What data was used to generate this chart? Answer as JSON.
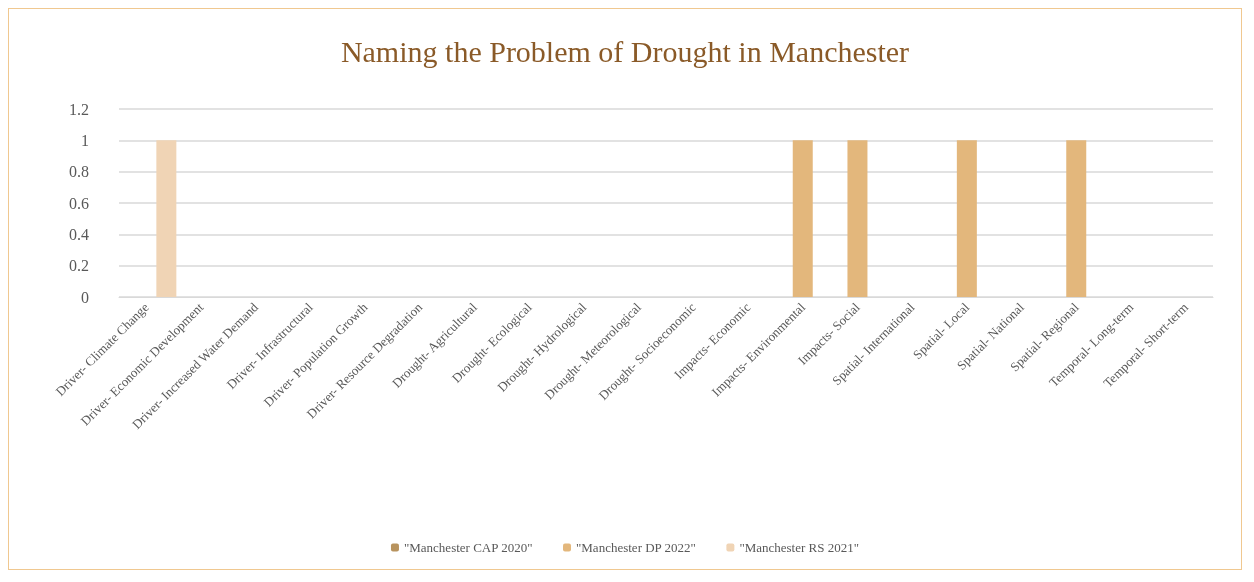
{
  "chart_data": {
    "type": "bar",
    "title": "Naming the Problem of Drought in Manchester",
    "categories": [
      "Driver- Climate Change",
      "Driver- Economic Development",
      "Driver- Increased Water Demand",
      "Driver- Infrastructural",
      "Driver- Population Growth",
      "Driver- Resource Degradation",
      "Drought- Agricultural",
      "Drought- Ecological",
      "Drought- Hydrological",
      "Drought- Meteorological",
      "Drought- Socioeconomic",
      "Impacts- Economic",
      "Impacts- Environmental",
      "Impacts- Social",
      "Spatial- International",
      "Spatial- Local",
      "Spatial- National",
      "Spatial- Regional",
      "Temporal- Long-term",
      "Temporal- Short-term"
    ],
    "series": [
      {
        "name": "\"Manchester CAP 2020\"",
        "color": "#b8935e",
        "values": [
          0,
          0,
          0,
          0,
          0,
          0,
          0,
          0,
          0,
          0,
          0,
          0,
          0,
          0,
          0,
          0,
          0,
          0,
          0,
          0
        ]
      },
      {
        "name": "\"Manchester DP 2022\"",
        "color": "#e3b77c",
        "values": [
          0,
          0,
          0,
          0,
          0,
          0,
          0,
          0,
          0,
          0,
          0,
          0,
          1,
          1,
          0,
          1,
          0,
          1,
          0,
          0
        ]
      },
      {
        "name": "\"Manchester RS 2021\"",
        "color": "#f0d4b5",
        "values": [
          1,
          0,
          0,
          0,
          0,
          0,
          0,
          0,
          0,
          0,
          0,
          0,
          0,
          0,
          0,
          0,
          0,
          0,
          0,
          0
        ]
      }
    ],
    "ylim": [
      0,
      1.2
    ],
    "yticks": [
      0,
      0.2,
      0.4,
      0.6,
      0.8,
      1,
      1.2
    ],
    "grid": "y",
    "legend": "bottom"
  }
}
